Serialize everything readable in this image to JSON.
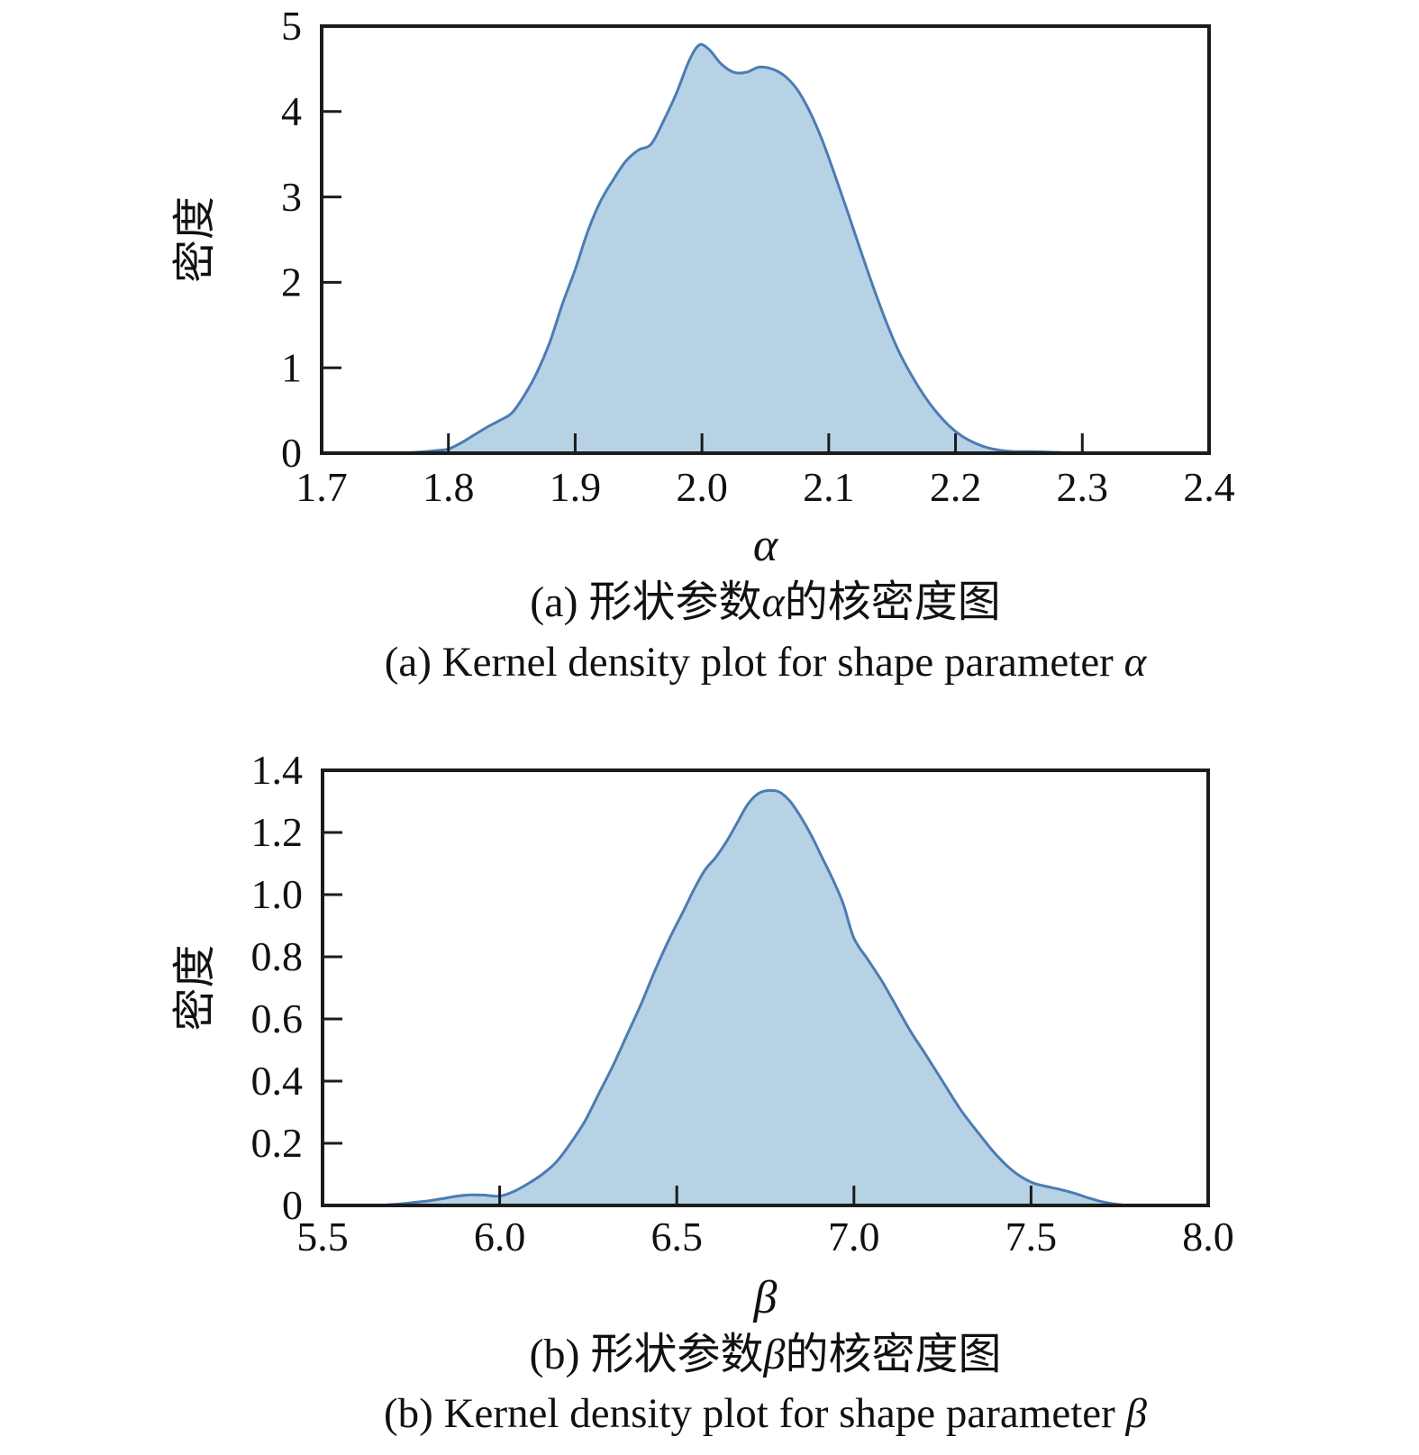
{
  "colors": {
    "curve_line": "#4b7cb3",
    "curve_fill": "#b7d2e4",
    "axis": "#1c1c1c",
    "text": "#111111"
  },
  "chart_data": [
    {
      "type": "area",
      "panel": "a",
      "symbol": "α",
      "xlabel": "α",
      "ylabel": "密度",
      "xlim": [
        1.7,
        2.4
      ],
      "ylim": [
        0,
        5
      ],
      "xticks": {
        "values": [
          1.7,
          1.8,
          1.9,
          2.0,
          2.1,
          2.2,
          2.3,
          2.4
        ],
        "labels": [
          "1.7",
          "1.8",
          "1.9",
          "2.0",
          "2.1",
          "2.2",
          "2.3",
          "2.4"
        ]
      },
      "yticks": {
        "values": [
          0,
          1,
          2,
          3,
          4,
          5
        ],
        "labels": [
          "0",
          "1",
          "2",
          "3",
          "4",
          "5"
        ]
      },
      "x": [
        1.76,
        1.775,
        1.79,
        1.8,
        1.81,
        1.82,
        1.83,
        1.84,
        1.85,
        1.86,
        1.87,
        1.88,
        1.89,
        1.9,
        1.91,
        1.92,
        1.93,
        1.94,
        1.95,
        1.96,
        1.97,
        1.98,
        1.99,
        1.998,
        2.006,
        2.015,
        2.025,
        2.035,
        2.045,
        2.055,
        2.065,
        2.075,
        2.085,
        2.095,
        2.105,
        2.115,
        2.125,
        2.135,
        2.145,
        2.155,
        2.165,
        2.175,
        2.185,
        2.195,
        2.205,
        2.215,
        2.225,
        2.235,
        2.245,
        2.26,
        2.275,
        2.29,
        2.31
      ],
      "y": [
        0,
        0.01,
        0.03,
        0.05,
        0.12,
        0.21,
        0.3,
        0.38,
        0.47,
        0.68,
        0.95,
        1.3,
        1.75,
        2.15,
        2.6,
        2.95,
        3.2,
        3.42,
        3.55,
        3.62,
        3.9,
        4.22,
        4.6,
        4.78,
        4.72,
        4.56,
        4.46,
        4.46,
        4.52,
        4.5,
        4.42,
        4.26,
        4.0,
        3.66,
        3.25,
        2.82,
        2.38,
        1.95,
        1.55,
        1.2,
        0.92,
        0.68,
        0.48,
        0.32,
        0.2,
        0.12,
        0.065,
        0.035,
        0.02,
        0.018,
        0.012,
        0.005,
        0
      ],
      "caption_zh_prefix": "(a) 形状参数",
      "caption_zh_suffix": "的核密度图",
      "caption_en_prefix": "(a) Kernel density plot for shape parameter "
    },
    {
      "type": "area",
      "panel": "b",
      "symbol": "β",
      "xlabel": "β",
      "ylabel": "密度",
      "xlim": [
        5.5,
        8.0
      ],
      "ylim": [
        0,
        1.4
      ],
      "xticks": {
        "values": [
          5.5,
          6.0,
          6.5,
          7.0,
          7.5,
          8.0
        ],
        "labels": [
          "5.5",
          "6.0",
          "6.5",
          "7.0",
          "7.5",
          "8.0"
        ]
      },
      "yticks": {
        "values": [
          0,
          0.2,
          0.4,
          0.6,
          0.8,
          1.0,
          1.2,
          1.4
        ],
        "labels": [
          "0",
          "0.2",
          "0.4",
          "0.6",
          "0.8",
          "1.0",
          "1.2",
          "1.4"
        ]
      },
      "x": [
        5.66,
        5.72,
        5.76,
        5.8,
        5.84,
        5.88,
        5.92,
        5.96,
        6.0,
        6.04,
        6.08,
        6.12,
        6.16,
        6.2,
        6.24,
        6.28,
        6.32,
        6.36,
        6.4,
        6.44,
        6.48,
        6.52,
        6.55,
        6.58,
        6.61,
        6.64,
        6.67,
        6.7,
        6.73,
        6.76,
        6.79,
        6.82,
        6.85,
        6.88,
        6.91,
        6.94,
        6.97,
        7.0,
        7.04,
        7.08,
        7.12,
        7.16,
        7.2,
        7.25,
        7.3,
        7.35,
        7.4,
        7.45,
        7.5,
        7.54,
        7.58,
        7.62,
        7.66,
        7.7,
        7.74,
        7.78
      ],
      "y": [
        0,
        0.005,
        0.01,
        0.015,
        0.022,
        0.03,
        0.034,
        0.033,
        0.03,
        0.045,
        0.07,
        0.1,
        0.14,
        0.2,
        0.27,
        0.36,
        0.45,
        0.55,
        0.65,
        0.76,
        0.86,
        0.95,
        1.02,
        1.08,
        1.12,
        1.17,
        1.23,
        1.29,
        1.325,
        1.335,
        1.33,
        1.3,
        1.25,
        1.19,
        1.12,
        1.05,
        0.97,
        0.86,
        0.79,
        0.72,
        0.64,
        0.56,
        0.49,
        0.4,
        0.31,
        0.235,
        0.165,
        0.11,
        0.075,
        0.062,
        0.052,
        0.04,
        0.025,
        0.012,
        0.004,
        0
      ],
      "caption_zh_prefix": "(b) 形状参数",
      "caption_zh_suffix": "的核密度图",
      "caption_en_prefix": "(b) Kernel density plot for shape parameter "
    }
  ]
}
